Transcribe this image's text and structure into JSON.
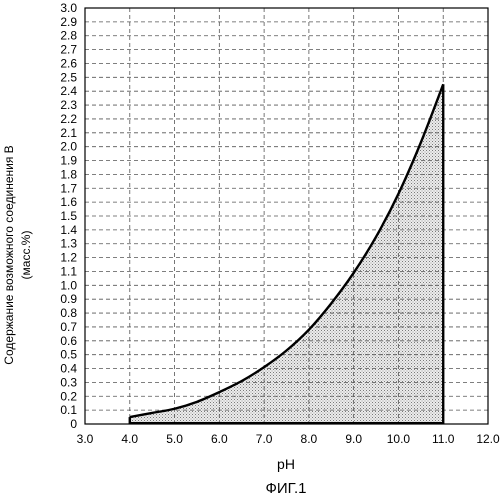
{
  "chart_data": {
    "type": "area",
    "title": "",
    "xlabel": "pH",
    "ylabel": "Содержание возможного соединения В",
    "ylabel_unit": "(масс.%)",
    "caption": "ФИГ.1",
    "xlim": [
      3.0,
      12.0
    ],
    "ylim": [
      0,
      3.0
    ],
    "x_ticks": [
      "3.0",
      "4.0",
      "5.0",
      "6.0",
      "7.0",
      "8.0",
      "9.0",
      "10.0",
      "11.0",
      "12.0"
    ],
    "y_ticks": [
      "0",
      "0.1",
      "0.2",
      "0.3",
      "0.4",
      "0.5",
      "0.6",
      "0.7",
      "0.8",
      "0.9",
      "1.0",
      "1.1",
      "1.2",
      "1.3",
      "1.4",
      "1.5",
      "1.6",
      "1.7",
      "1.8",
      "1.9",
      "2.0",
      "2.1",
      "2.2",
      "2.3",
      "2.4",
      "2.5",
      "2.6",
      "2.7",
      "2.8",
      "2.9",
      "3.0"
    ],
    "grid": true,
    "series": [
      {
        "x": [
          4.0,
          4.5,
          5.0,
          5.5,
          6.0,
          6.5,
          7.0,
          7.5,
          8.0,
          8.5,
          9.0,
          9.5,
          10.0,
          10.5,
          11.0
        ],
        "y": [
          0.05,
          0.08,
          0.11,
          0.16,
          0.23,
          0.31,
          0.41,
          0.53,
          0.68,
          0.87,
          1.09,
          1.35,
          1.66,
          2.03,
          2.45
        ]
      }
    ],
    "fill_color": "#d4d4d4",
    "line_color": "#000000"
  }
}
